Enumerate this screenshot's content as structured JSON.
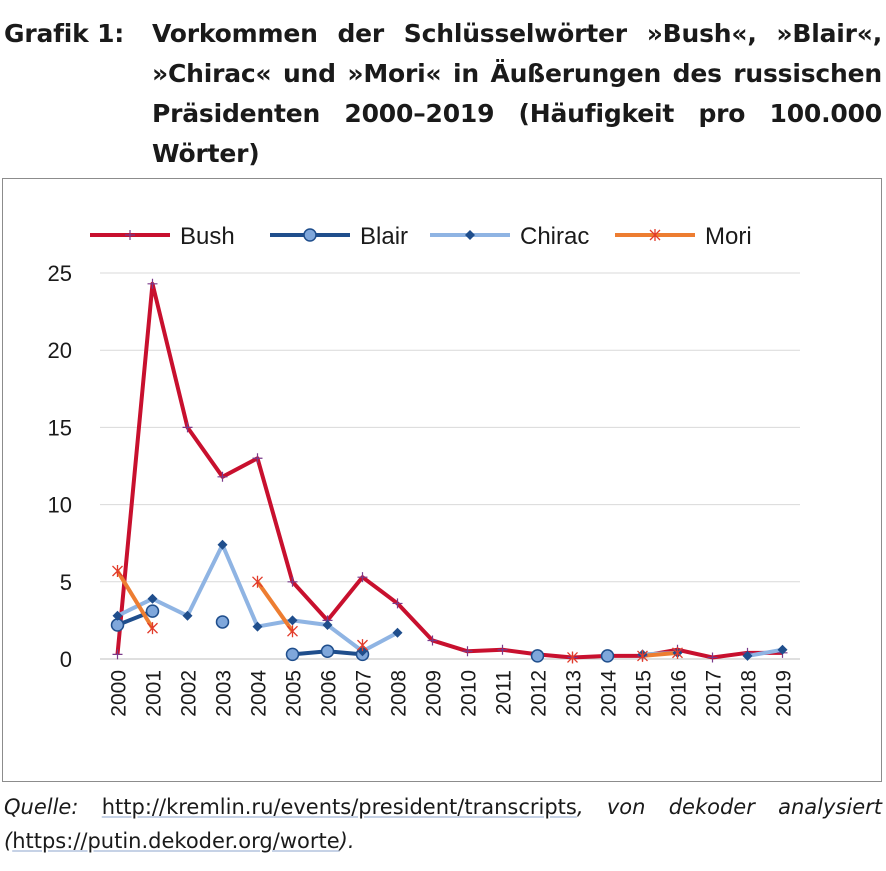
{
  "caption": {
    "label": "Grafik 1:",
    "title": "Vorkommen der Schlüsselwörter »Bush«, »Blair«, »Chirac« und »Mori« in Äußerungen des russischen Präsidenten 2000–2019 (Häufigkeit pro 100.000 Wörter)"
  },
  "source": {
    "prefix": "Quelle:",
    "url1": "http://kremlin.ru/events/president/transcripts",
    "middle": ", von dekoder analysiert (",
    "url2": "https://putin.dekoder.org/worte",
    "suffix": ")."
  },
  "chart_data": {
    "type": "line",
    "title": "",
    "xlabel": "",
    "ylabel": "",
    "ylim": [
      0,
      25
    ],
    "yticks": [
      0,
      5,
      10,
      15,
      20,
      25
    ],
    "grid": true,
    "legend_position": "top",
    "categories": [
      "2000",
      "2001",
      "2002",
      "2003",
      "2004",
      "2005",
      "2006",
      "2007",
      "2008",
      "2009",
      "2010",
      "2011",
      "2012",
      "2013",
      "2014",
      "2015",
      "2016",
      "2017",
      "2018",
      "2019"
    ],
    "series": [
      {
        "name": "Bush",
        "color": "#c8102e",
        "marker": "plus",
        "values": [
          0.3,
          24.3,
          15.0,
          11.8,
          13.0,
          5.0,
          2.5,
          5.3,
          3.6,
          1.2,
          0.5,
          0.6,
          0.3,
          0.1,
          0.2,
          0.2,
          0.6,
          0.1,
          0.4,
          0.4
        ]
      },
      {
        "name": "Blair",
        "color": "#1f4e8c",
        "marker": "circle",
        "values": [
          2.2,
          3.1,
          null,
          2.4,
          null,
          0.3,
          0.5,
          0.3,
          null,
          null,
          null,
          null,
          0.2,
          null,
          0.2,
          null,
          null,
          null,
          null,
          null
        ]
      },
      {
        "name": "Chirac",
        "color": "#8fb4e3",
        "marker": "diamond",
        "values": [
          2.8,
          3.9,
          2.8,
          7.4,
          2.1,
          2.5,
          2.2,
          0.5,
          1.7,
          null,
          null,
          null,
          null,
          null,
          null,
          0.3,
          0.4,
          null,
          0.2,
          0.6
        ]
      },
      {
        "name": "Mori",
        "color": "#ed7d31",
        "marker": "star",
        "values": [
          5.7,
          2.0,
          null,
          null,
          5.0,
          1.8,
          null,
          0.9,
          null,
          null,
          null,
          null,
          null,
          0.1,
          null,
          0.2,
          0.4,
          null,
          null,
          null
        ]
      }
    ]
  }
}
